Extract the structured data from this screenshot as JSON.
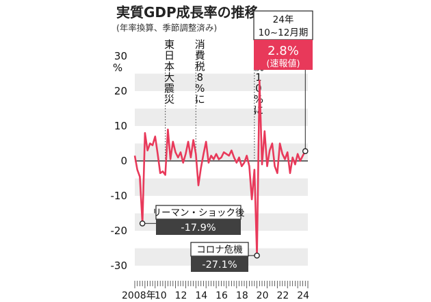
{
  "header": {
    "title": "実質GDP成長率の推移",
    "subtitle": "(年率換算、季節調整済み)"
  },
  "colors": {
    "line": "#e8395a",
    "stripe": "#ececec",
    "label_dark": "#404040",
    "label_red": "#e8395a"
  },
  "chart_data": {
    "type": "line",
    "y_unit": "%",
    "ylim": [
      -30,
      30
    ],
    "y_ticks": [
      30,
      20,
      10,
      0,
      -10,
      -20,
      -30
    ],
    "y_tick_labels": [
      "30",
      "20",
      "10",
      "0",
      "-10",
      "-20",
      "-30"
    ],
    "x_tick_labels": [
      "2008年",
      "10",
      "12",
      "14",
      "16",
      "18",
      "20",
      "22",
      "24"
    ],
    "x_tick_years": [
      2008,
      2010,
      2012,
      2014,
      2016,
      2018,
      2020,
      2022,
      2024
    ],
    "xlim": [
      2008.0,
      2025.0
    ],
    "grid": "horizontal stripes",
    "series": [
      {
        "x": [
          2008.0,
          2008.25,
          2008.5,
          2008.75,
          2009.0,
          2009.25,
          2009.5,
          2009.75,
          2010.0,
          2010.25,
          2010.5,
          2010.75,
          2011.0,
          2011.25,
          2011.5,
          2011.75,
          2012.0,
          2012.25,
          2012.5,
          2012.75,
          2013.0,
          2013.25,
          2013.5,
          2013.75,
          2014.0,
          2014.25,
          2014.5,
          2014.75,
          2015.0,
          2015.25,
          2015.5,
          2015.75,
          2016.0,
          2016.25,
          2016.5,
          2016.75,
          2017.0,
          2017.25,
          2017.5,
          2017.75,
          2018.0,
          2018.25,
          2018.5,
          2018.75,
          2019.0,
          2019.25,
          2019.5,
          2019.75,
          2020.0,
          2020.25,
          2020.5,
          2020.75,
          2021.0,
          2021.25,
          2021.5,
          2021.75,
          2022.0,
          2022.25,
          2022.5,
          2022.75,
          2023.0,
          2023.25,
          2023.5,
          2023.75,
          2024.0,
          2024.25,
          2024.5,
          2024.75
        ],
        "values": [
          1.5,
          -2.5,
          -4.5,
          -17.9,
          8.0,
          3.0,
          5.0,
          4.5,
          7.0,
          2.0,
          -3.5,
          -3.0,
          -4.0,
          9.0,
          0.5,
          5.5,
          2.5,
          1.0,
          2.5,
          -0.5,
          2.0,
          5.5,
          1.0,
          6.0,
          2.0,
          -7.0,
          -2.0,
          2.0,
          5.5,
          -0.5,
          1.5,
          0.5,
          2.0,
          0.5,
          1.0,
          2.5,
          2.0,
          1.5,
          3.0,
          1.0,
          -0.5,
          1.0,
          -1.5,
          -0.5,
          1.5,
          -1.5,
          -11.0,
          -2.5,
          -27.1,
          23.0,
          -1.0,
          8.5,
          -1.5,
          3.0,
          5.0,
          -1.5,
          -3.5,
          5.0,
          2.0,
          0.5,
          2.5,
          -3.5,
          1.0,
          -1.0,
          2.0,
          0.0,
          1.5,
          2.8
        ]
      }
    ],
    "annotations": {
      "lehman": {
        "x": 2008.75,
        "y": -17.9,
        "label": "リーマン・ショック後",
        "value": "-17.9%"
      },
      "corona": {
        "x": 2020.0,
        "y": -27.1,
        "label": "コロナ危機",
        "value": "-27.1%"
      },
      "latest": {
        "x": 2024.75,
        "y": 2.8,
        "period_line1": "24年",
        "period_line2": "10~12月期",
        "value": "2.8%",
        "note": "(速報値)"
      },
      "events": [
        {
          "x": 2011.0,
          "label": "東日本大震災"
        },
        {
          "x": 2014.0,
          "label": "消費税8%に"
        },
        {
          "x": 2019.75,
          "label": "消費税10%に"
        }
      ]
    }
  }
}
